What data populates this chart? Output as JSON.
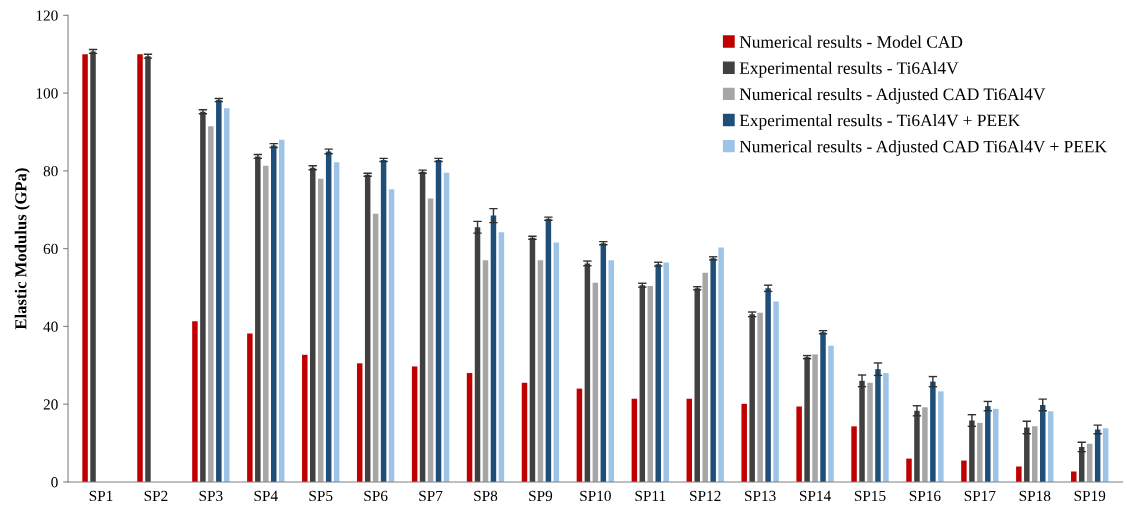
{
  "chart_data": {
    "type": "bar",
    "ylabel": "Elastic Modulus (GPa)",
    "categories": [
      "SP1",
      "SP2",
      "SP3",
      "SP4",
      "SP5",
      "SP6",
      "SP7",
      "SP8",
      "SP9",
      "SP10",
      "SP11",
      "SP12",
      "SP13",
      "SP14",
      "SP15",
      "SP16",
      "SP17",
      "SP18",
      "SP19"
    ],
    "series": [
      {
        "name": "Numerical results - Model CAD",
        "color": "#c00000",
        "values": [
          110,
          110,
          41.3,
          38.2,
          32.7,
          30.5,
          29.7,
          28.0,
          25.5,
          24.0,
          21.4,
          21.4,
          20.1,
          19.4,
          14.3,
          6.0,
          5.5,
          4.0,
          2.7
        ]
      },
      {
        "name": "Experimental results - Ti6Al4V",
        "color": "#404040",
        "values": [
          110.7,
          109.5,
          95.2,
          83.7,
          80.8,
          79.0,
          79.8,
          65.5,
          62.8,
          56.2,
          50.6,
          49.8,
          43.1,
          32.1,
          26.0,
          18.3,
          15.8,
          14.0,
          9.0
        ],
        "errors": [
          0.5,
          0.5,
          0.5,
          0.5,
          0.5,
          0.4,
          0.4,
          1.5,
          0.4,
          0.6,
          0.5,
          0.4,
          0.6,
          0.4,
          1.5,
          1.3,
          1.5,
          1.6,
          1.2
        ]
      },
      {
        "name": "Numerical results - Adjusted CAD Ti6Al4V",
        "color": "#a6a6a6",
        "values": [
          null,
          null,
          91.5,
          81.3,
          78.0,
          69.0,
          72.9,
          57.0,
          57.0,
          51.2,
          50.4,
          53.8,
          43.5,
          32.8,
          25.5,
          19.2,
          15.2,
          14.3,
          9.8
        ]
      },
      {
        "name": "Experimental results - Ti6Al4V + PEEK",
        "color": "#1f4e79",
        "values": [
          null,
          null,
          98.2,
          86.5,
          85.0,
          82.8,
          82.8,
          68.5,
          67.7,
          61.4,
          56.0,
          57.5,
          49.8,
          38.5,
          29.0,
          25.8,
          19.5,
          19.8,
          13.5
        ],
        "errors": [
          null,
          null,
          0.4,
          0.5,
          0.6,
          0.4,
          0.4,
          1.8,
          0.4,
          0.4,
          0.5,
          0.4,
          0.8,
          0.4,
          1.6,
          1.3,
          1.2,
          1.5,
          1.1
        ]
      },
      {
        "name": "Numerical results - Adjusted CAD Ti6Al4V + PEEK",
        "color": "#9dc3e6",
        "values": [
          null,
          null,
          96.1,
          88.0,
          82.2,
          75.3,
          79.5,
          64.2,
          61.6,
          57.0,
          56.4,
          60.3,
          46.4,
          35.0,
          28.0,
          23.3,
          18.8,
          18.2,
          13.8
        ]
      }
    ],
    "ylim": [
      0,
      120
    ],
    "yticks": [
      0,
      20,
      40,
      60,
      80,
      100,
      120
    ],
    "legend": "top right",
    "grid": false
  }
}
